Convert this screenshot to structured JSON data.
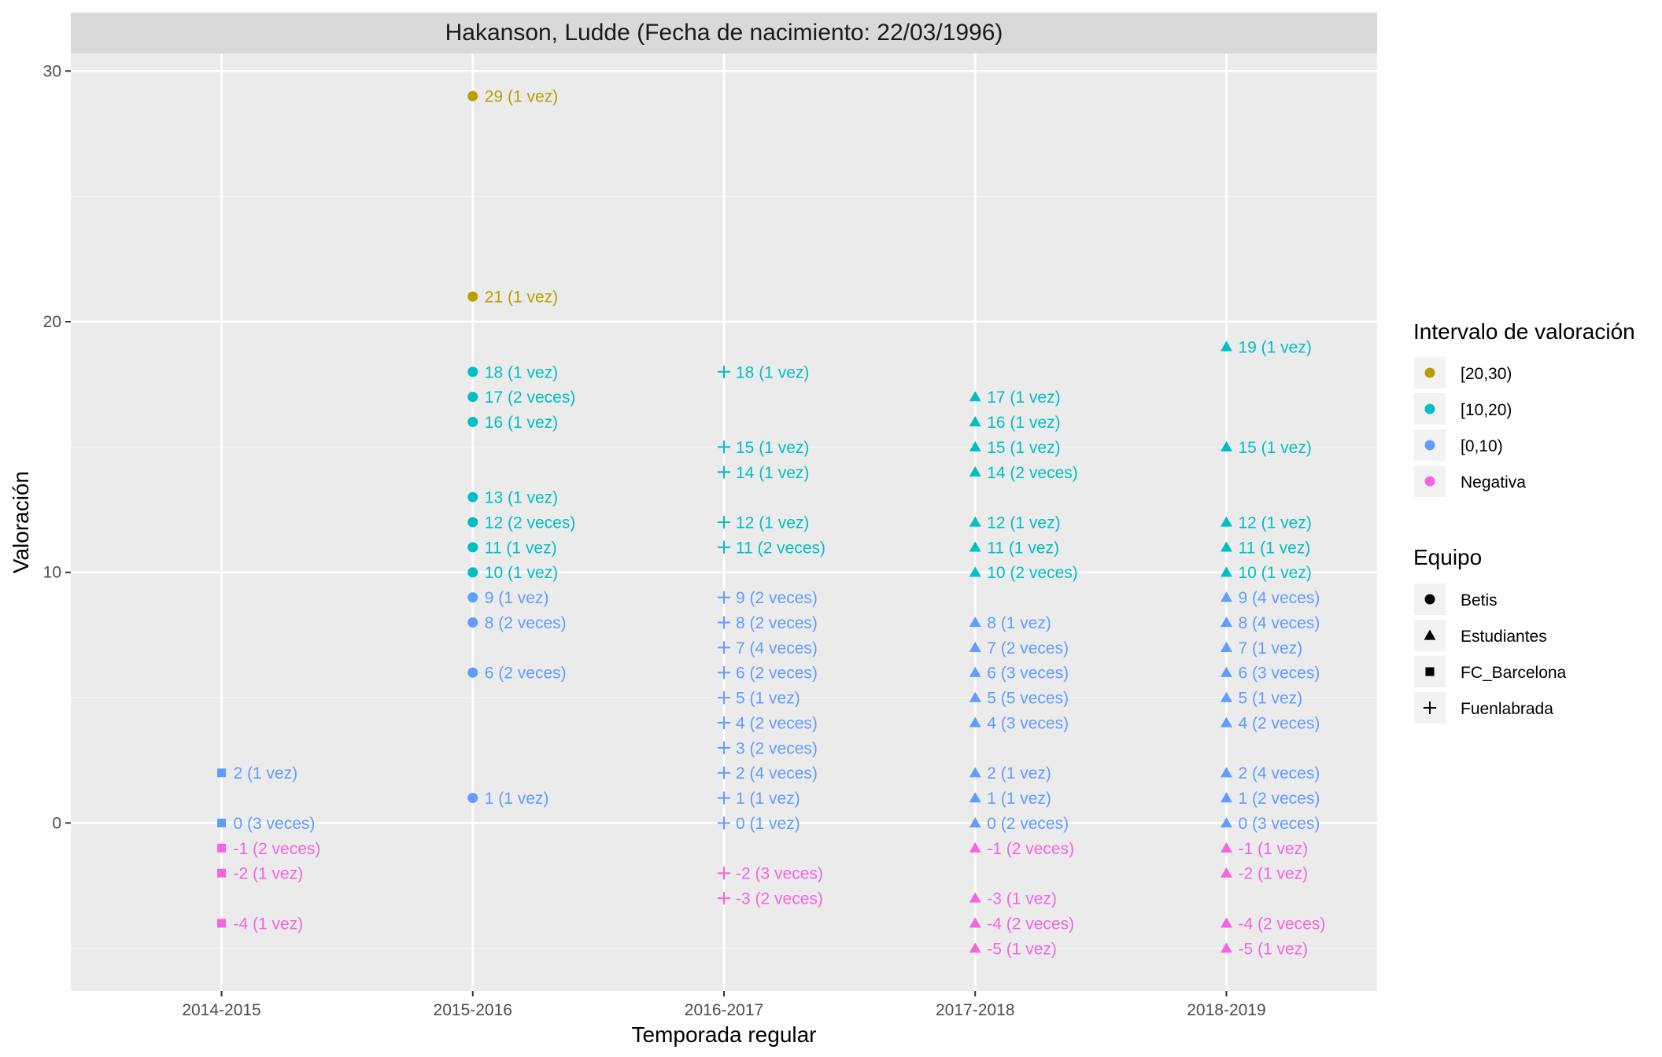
{
  "chart_data": {
    "type": "scatter",
    "title": "Hakanson, Ludde (Fecha de nacimiento: 22/03/1996)",
    "xlabel": "Temporada regular",
    "ylabel": "Valoración",
    "categories": [
      "2014-2015",
      "2015-2016",
      "2016-2017",
      "2017-2018",
      "2018-2019"
    ],
    "ylim": [
      -6.7,
      30.7
    ],
    "yticks": [
      0,
      10,
      20,
      30
    ],
    "grid": true,
    "legend_placement": "right",
    "colors": {
      "[20,30)": "#B79F00",
      "[10,20)": "#00BFC4",
      "[0,10)": "#619CFF",
      "Negativa": "#F564E3"
    },
    "shapes": {
      "Betis": "circle",
      "Estudiantes": "triangle",
      "FC_Barcelona": "square",
      "Fuenlabrada": "plus"
    },
    "legend_color": {
      "title": "Intervalo de valoración",
      "items": [
        "[20,30)",
        "[10,20)",
        "[0,10)",
        "Negativa"
      ]
    },
    "legend_shape": {
      "title": "Equipo",
      "items": [
        "Betis",
        "Estudiantes",
        "FC_Barcelona",
        "Fuenlabrada"
      ]
    },
    "points": [
      {
        "x": "2014-2015",
        "y": 2,
        "team": "FC_Barcelona",
        "interval": "[0,10)",
        "label": "2 (1 vez)"
      },
      {
        "x": "2014-2015",
        "y": 0,
        "team": "FC_Barcelona",
        "interval": "[0,10)",
        "label": "0 (3 veces)"
      },
      {
        "x": "2014-2015",
        "y": -1,
        "team": "FC_Barcelona",
        "interval": "Negativa",
        "label": "-1 (2 veces)"
      },
      {
        "x": "2014-2015",
        "y": -2,
        "team": "FC_Barcelona",
        "interval": "Negativa",
        "label": "-2 (1 vez)"
      },
      {
        "x": "2014-2015",
        "y": -4,
        "team": "FC_Barcelona",
        "interval": "Negativa",
        "label": "-4 (1 vez)"
      },
      {
        "x": "2015-2016",
        "y": 29,
        "team": "Betis",
        "interval": "[20,30)",
        "label": "29 (1 vez)"
      },
      {
        "x": "2015-2016",
        "y": 21,
        "team": "Betis",
        "interval": "[20,30)",
        "label": "21 (1 vez)"
      },
      {
        "x": "2015-2016",
        "y": 18,
        "team": "Betis",
        "interval": "[10,20)",
        "label": "18 (1 vez)"
      },
      {
        "x": "2015-2016",
        "y": 17,
        "team": "Betis",
        "interval": "[10,20)",
        "label": "17 (2 veces)"
      },
      {
        "x": "2015-2016",
        "y": 16,
        "team": "Betis",
        "interval": "[10,20)",
        "label": "16 (1 vez)"
      },
      {
        "x": "2015-2016",
        "y": 13,
        "team": "Betis",
        "interval": "[10,20)",
        "label": "13 (1 vez)"
      },
      {
        "x": "2015-2016",
        "y": 12,
        "team": "Betis",
        "interval": "[10,20)",
        "label": "12 (2 veces)"
      },
      {
        "x": "2015-2016",
        "y": 11,
        "team": "Betis",
        "interval": "[10,20)",
        "label": "11 (1 vez)"
      },
      {
        "x": "2015-2016",
        "y": 10,
        "team": "Betis",
        "interval": "[10,20)",
        "label": "10 (1 vez)"
      },
      {
        "x": "2015-2016",
        "y": 9,
        "team": "Betis",
        "interval": "[0,10)",
        "label": "9 (1 vez)"
      },
      {
        "x": "2015-2016",
        "y": 8,
        "team": "Betis",
        "interval": "[0,10)",
        "label": "8 (2 veces)"
      },
      {
        "x": "2015-2016",
        "y": 6,
        "team": "Betis",
        "interval": "[0,10)",
        "label": "6 (2 veces)"
      },
      {
        "x": "2015-2016",
        "y": 1,
        "team": "Betis",
        "interval": "[0,10)",
        "label": "1 (1 vez)"
      },
      {
        "x": "2016-2017",
        "y": 18,
        "team": "Fuenlabrada",
        "interval": "[10,20)",
        "label": "18 (1 vez)"
      },
      {
        "x": "2016-2017",
        "y": 15,
        "team": "Fuenlabrada",
        "interval": "[10,20)",
        "label": "15 (1 vez)"
      },
      {
        "x": "2016-2017",
        "y": 14,
        "team": "Fuenlabrada",
        "interval": "[10,20)",
        "label": "14 (1 vez)"
      },
      {
        "x": "2016-2017",
        "y": 12,
        "team": "Fuenlabrada",
        "interval": "[10,20)",
        "label": "12 (1 vez)"
      },
      {
        "x": "2016-2017",
        "y": 11,
        "team": "Fuenlabrada",
        "interval": "[10,20)",
        "label": "11 (2 veces)"
      },
      {
        "x": "2016-2017",
        "y": 9,
        "team": "Fuenlabrada",
        "interval": "[0,10)",
        "label": "9 (2 veces)"
      },
      {
        "x": "2016-2017",
        "y": 8,
        "team": "Fuenlabrada",
        "interval": "[0,10)",
        "label": "8 (2 veces)"
      },
      {
        "x": "2016-2017",
        "y": 7,
        "team": "Fuenlabrada",
        "interval": "[0,10)",
        "label": "7 (4 veces)"
      },
      {
        "x": "2016-2017",
        "y": 6,
        "team": "Fuenlabrada",
        "interval": "[0,10)",
        "label": "6 (2 veces)"
      },
      {
        "x": "2016-2017",
        "y": 5,
        "team": "Fuenlabrada",
        "interval": "[0,10)",
        "label": "5 (1 vez)"
      },
      {
        "x": "2016-2017",
        "y": 4,
        "team": "Fuenlabrada",
        "interval": "[0,10)",
        "label": "4 (2 veces)"
      },
      {
        "x": "2016-2017",
        "y": 3,
        "team": "Fuenlabrada",
        "interval": "[0,10)",
        "label": "3 (2 veces)"
      },
      {
        "x": "2016-2017",
        "y": 2,
        "team": "Fuenlabrada",
        "interval": "[0,10)",
        "label": "2 (4 veces)"
      },
      {
        "x": "2016-2017",
        "y": 1,
        "team": "Fuenlabrada",
        "interval": "[0,10)",
        "label": "1 (1 vez)"
      },
      {
        "x": "2016-2017",
        "y": 0,
        "team": "Fuenlabrada",
        "interval": "[0,10)",
        "label": "0 (1 vez)"
      },
      {
        "x": "2016-2017",
        "y": -2,
        "team": "Fuenlabrada",
        "interval": "Negativa",
        "label": "-2 (3 veces)"
      },
      {
        "x": "2016-2017",
        "y": -3,
        "team": "Fuenlabrada",
        "interval": "Negativa",
        "label": "-3 (2 veces)"
      },
      {
        "x": "2017-2018",
        "y": 17,
        "team": "Estudiantes",
        "interval": "[10,20)",
        "label": "17 (1 vez)"
      },
      {
        "x": "2017-2018",
        "y": 16,
        "team": "Estudiantes",
        "interval": "[10,20)",
        "label": "16 (1 vez)"
      },
      {
        "x": "2017-2018",
        "y": 15,
        "team": "Estudiantes",
        "interval": "[10,20)",
        "label": "15 (1 vez)"
      },
      {
        "x": "2017-2018",
        "y": 14,
        "team": "Estudiantes",
        "interval": "[10,20)",
        "label": "14 (2 veces)"
      },
      {
        "x": "2017-2018",
        "y": 12,
        "team": "Estudiantes",
        "interval": "[10,20)",
        "label": "12 (1 vez)"
      },
      {
        "x": "2017-2018",
        "y": 11,
        "team": "Estudiantes",
        "interval": "[10,20)",
        "label": "11 (1 vez)"
      },
      {
        "x": "2017-2018",
        "y": 10,
        "team": "Estudiantes",
        "interval": "[10,20)",
        "label": "10 (2 veces)"
      },
      {
        "x": "2017-2018",
        "y": 8,
        "team": "Estudiantes",
        "interval": "[0,10)",
        "label": "8 (1 vez)"
      },
      {
        "x": "2017-2018",
        "y": 7,
        "team": "Estudiantes",
        "interval": "[0,10)",
        "label": "7 (2 veces)"
      },
      {
        "x": "2017-2018",
        "y": 6,
        "team": "Estudiantes",
        "interval": "[0,10)",
        "label": "6 (3 veces)"
      },
      {
        "x": "2017-2018",
        "y": 5,
        "team": "Estudiantes",
        "interval": "[0,10)",
        "label": "5 (5 veces)"
      },
      {
        "x": "2017-2018",
        "y": 4,
        "team": "Estudiantes",
        "interval": "[0,10)",
        "label": "4 (3 veces)"
      },
      {
        "x": "2017-2018",
        "y": 2,
        "team": "Estudiantes",
        "interval": "[0,10)",
        "label": "2 (1 vez)"
      },
      {
        "x": "2017-2018",
        "y": 1,
        "team": "Estudiantes",
        "interval": "[0,10)",
        "label": "1 (1 vez)"
      },
      {
        "x": "2017-2018",
        "y": 0,
        "team": "Estudiantes",
        "interval": "[0,10)",
        "label": "0 (2 veces)"
      },
      {
        "x": "2017-2018",
        "y": -1,
        "team": "Estudiantes",
        "interval": "Negativa",
        "label": "-1 (2 veces)"
      },
      {
        "x": "2017-2018",
        "y": -3,
        "team": "Estudiantes",
        "interval": "Negativa",
        "label": "-3 (1 vez)"
      },
      {
        "x": "2017-2018",
        "y": -4,
        "team": "Estudiantes",
        "interval": "Negativa",
        "label": "-4 (2 veces)"
      },
      {
        "x": "2017-2018",
        "y": -5,
        "team": "Estudiantes",
        "interval": "Negativa",
        "label": "-5 (1 vez)"
      },
      {
        "x": "2018-2019",
        "y": 19,
        "team": "Estudiantes",
        "interval": "[10,20)",
        "label": "19 (1 vez)"
      },
      {
        "x": "2018-2019",
        "y": 15,
        "team": "Estudiantes",
        "interval": "[10,20)",
        "label": "15 (1 vez)"
      },
      {
        "x": "2018-2019",
        "y": 12,
        "team": "Estudiantes",
        "interval": "[10,20)",
        "label": "12 (1 vez)"
      },
      {
        "x": "2018-2019",
        "y": 11,
        "team": "Estudiantes",
        "interval": "[10,20)",
        "label": "11 (1 vez)"
      },
      {
        "x": "2018-2019",
        "y": 10,
        "team": "Estudiantes",
        "interval": "[10,20)",
        "label": "10 (1 vez)"
      },
      {
        "x": "2018-2019",
        "y": 9,
        "team": "Estudiantes",
        "interval": "[0,10)",
        "label": "9 (4 veces)"
      },
      {
        "x": "2018-2019",
        "y": 8,
        "team": "Estudiantes",
        "interval": "[0,10)",
        "label": "8 (4 veces)"
      },
      {
        "x": "2018-2019",
        "y": 7,
        "team": "Estudiantes",
        "interval": "[0,10)",
        "label": "7 (1 vez)"
      },
      {
        "x": "2018-2019",
        "y": 6,
        "team": "Estudiantes",
        "interval": "[0,10)",
        "label": "6 (3 veces)"
      },
      {
        "x": "2018-2019",
        "y": 5,
        "team": "Estudiantes",
        "interval": "[0,10)",
        "label": "5 (1 vez)"
      },
      {
        "x": "2018-2019",
        "y": 4,
        "team": "Estudiantes",
        "interval": "[0,10)",
        "label": "4 (2 veces)"
      },
      {
        "x": "2018-2019",
        "y": 2,
        "team": "Estudiantes",
        "interval": "[0,10)",
        "label": "2 (4 veces)"
      },
      {
        "x": "2018-2019",
        "y": 1,
        "team": "Estudiantes",
        "interval": "[0,10)",
        "label": "1 (2 veces)"
      },
      {
        "x": "2018-2019",
        "y": 0,
        "team": "Estudiantes",
        "interval": "[0,10)",
        "label": "0 (3 veces)"
      },
      {
        "x": "2018-2019",
        "y": -1,
        "team": "Estudiantes",
        "interval": "Negativa",
        "label": "-1 (1 vez)"
      },
      {
        "x": "2018-2019",
        "y": -2,
        "team": "Estudiantes",
        "interval": "Negativa",
        "label": "-2 (1 vez)"
      },
      {
        "x": "2018-2019",
        "y": -4,
        "team": "Estudiantes",
        "interval": "Negativa",
        "label": "-4 (2 veces)"
      },
      {
        "x": "2018-2019",
        "y": -5,
        "team": "Estudiantes",
        "interval": "Negativa",
        "label": "-5 (1 vez)"
      }
    ]
  }
}
